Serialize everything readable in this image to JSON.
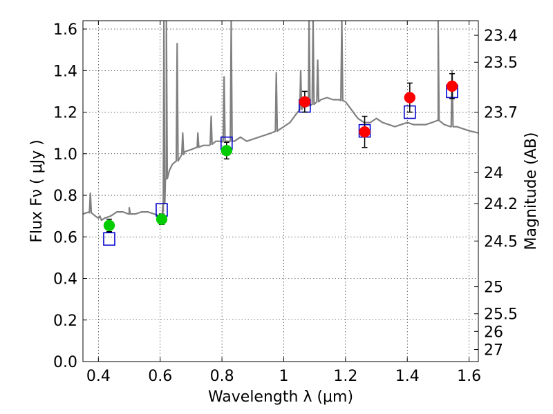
{
  "chart_data": {
    "type": "scatter",
    "title": "",
    "xlabel": "Wavelength  λ (μm)",
    "ylabel": "Flux  Fν  ( μJy )",
    "ylabel2": "Magnitude (AB)",
    "xlim": [
      0.35,
      1.63
    ],
    "ylim": [
      0.0,
      1.64
    ],
    "grid": true,
    "x_ticks": [
      0.4,
      0.6,
      0.8,
      1.0,
      1.2,
      1.4,
      1.6
    ],
    "x_tick_labels": [
      "0.4",
      "0.6",
      "0.8",
      "1",
      "1.2",
      "1.4",
      "1.6"
    ],
    "y_ticks": [
      0.0,
      0.2,
      0.4,
      0.6,
      0.8,
      1.0,
      1.2,
      1.4,
      1.6
    ],
    "y_tick_labels": [
      "0.0",
      "0.2",
      "0.4",
      "0.6",
      "0.8",
      "1.0",
      "1.2",
      "1.4",
      "1.6"
    ],
    "mag_ticks": [
      {
        "label": "23.4",
        "flux": 1.57
      },
      {
        "label": "23.5",
        "flux": 1.44
      },
      {
        "label": "23.7",
        "flux": 1.2
      },
      {
        "label": "24",
        "flux": 0.91
      },
      {
        "label": "24.2",
        "flux": 0.76
      },
      {
        "label": "24.5",
        "flux": 0.58
      },
      {
        "label": "25",
        "flux": 0.36
      },
      {
        "label": "25.5",
        "flux": 0.23
      },
      {
        "label": "26",
        "flux": 0.145
      },
      {
        "label": "27",
        "flux": 0.058
      }
    ],
    "series": [
      {
        "kind": "spectrum",
        "color": "#808080",
        "x": [
          0.35,
          0.37,
          0.39,
          0.4,
          0.405,
          0.41,
          0.42,
          0.44,
          0.46,
          0.48,
          0.5,
          0.52,
          0.54,
          0.56,
          0.58,
          0.6,
          0.605,
          0.61,
          0.615,
          0.62,
          0.63,
          0.64,
          0.66,
          0.68,
          0.7,
          0.72,
          0.74,
          0.76,
          0.78,
          0.8,
          0.82,
          0.84,
          0.86,
          0.88,
          0.9,
          0.92,
          0.94,
          0.96,
          0.98,
          1.0,
          1.02,
          1.04,
          1.06,
          1.08,
          1.1,
          1.12,
          1.14,
          1.16,
          1.18,
          1.2,
          1.22,
          1.24,
          1.26,
          1.28,
          1.3,
          1.32,
          1.34,
          1.36,
          1.38,
          1.4,
          1.42,
          1.44,
          1.46,
          1.48,
          1.5,
          1.52,
          1.54,
          1.56,
          1.58,
          1.6,
          1.63
        ],
        "y": [
          0.71,
          0.72,
          0.7,
          0.69,
          0.7,
          0.68,
          0.69,
          0.7,
          0.72,
          0.72,
          0.71,
          0.71,
          0.72,
          0.72,
          0.71,
          0.7,
          0.67,
          0.72,
          0.82,
          0.88,
          0.92,
          0.95,
          0.97,
          1.01,
          1.02,
          1.03,
          1.04,
          1.04,
          1.06,
          1.06,
          1.06,
          1.06,
          1.08,
          1.06,
          1.07,
          1.08,
          1.09,
          1.1,
          1.11,
          1.13,
          1.15,
          1.19,
          1.22,
          1.23,
          1.24,
          1.26,
          1.27,
          1.26,
          1.26,
          1.25,
          1.21,
          1.17,
          1.15,
          1.15,
          1.17,
          1.15,
          1.14,
          1.13,
          1.14,
          1.15,
          1.14,
          1.14,
          1.14,
          1.15,
          1.16,
          1.14,
          1.13,
          1.13,
          1.12,
          1.11,
          1.1
        ]
      },
      {
        "kind": "model_points",
        "shape": "open-square",
        "color": "#0000cc",
        "x": [
          0.435,
          0.605,
          0.815,
          1.068,
          1.262,
          1.408,
          1.545
        ],
        "y": [
          0.59,
          0.73,
          1.05,
          1.23,
          1.11,
          1.2,
          1.3
        ]
      },
      {
        "kind": "observed",
        "shape": "circle",
        "color": "#00cc00",
        "x": [
          0.435,
          0.605,
          0.815
        ],
        "y": [
          0.655,
          0.685,
          1.015
        ],
        "yerr": [
          0.03,
          0.025,
          0.04
        ]
      },
      {
        "kind": "observed",
        "shape": "circle",
        "color": "#ff0000",
        "x": [
          1.068,
          1.262,
          1.408,
          1.545
        ],
        "y": [
          1.25,
          1.105,
          1.27,
          1.325
        ],
        "yerr": [
          0.05,
          0.075,
          0.07,
          0.06
        ]
      }
    ],
    "emission_lines": [
      {
        "x": 0.374,
        "peak": 0.81
      },
      {
        "x": 0.5,
        "peak": 0.74
      },
      {
        "x": 0.612,
        "peak": 1.64
      },
      {
        "x": 0.62,
        "peak": 1.64
      },
      {
        "x": 0.655,
        "peak": 1.53
      },
      {
        "x": 0.673,
        "peak": 1.1
      },
      {
        "x": 0.722,
        "peak": 1.1
      },
      {
        "x": 0.765,
        "peak": 1.18
      },
      {
        "x": 0.807,
        "peak": 1.37
      },
      {
        "x": 0.83,
        "peak": 1.64
      },
      {
        "x": 0.976,
        "peak": 1.39
      },
      {
        "x": 1.055,
        "peak": 1.4
      },
      {
        "x": 1.082,
        "peak": 1.64
      },
      {
        "x": 1.095,
        "peak": 1.64
      },
      {
        "x": 1.11,
        "peak": 1.45
      },
      {
        "x": 1.188,
        "peak": 1.64
      },
      {
        "x": 1.5,
        "peak": 1.64
      },
      {
        "x": 1.545,
        "peak": 1.4
      }
    ]
  }
}
